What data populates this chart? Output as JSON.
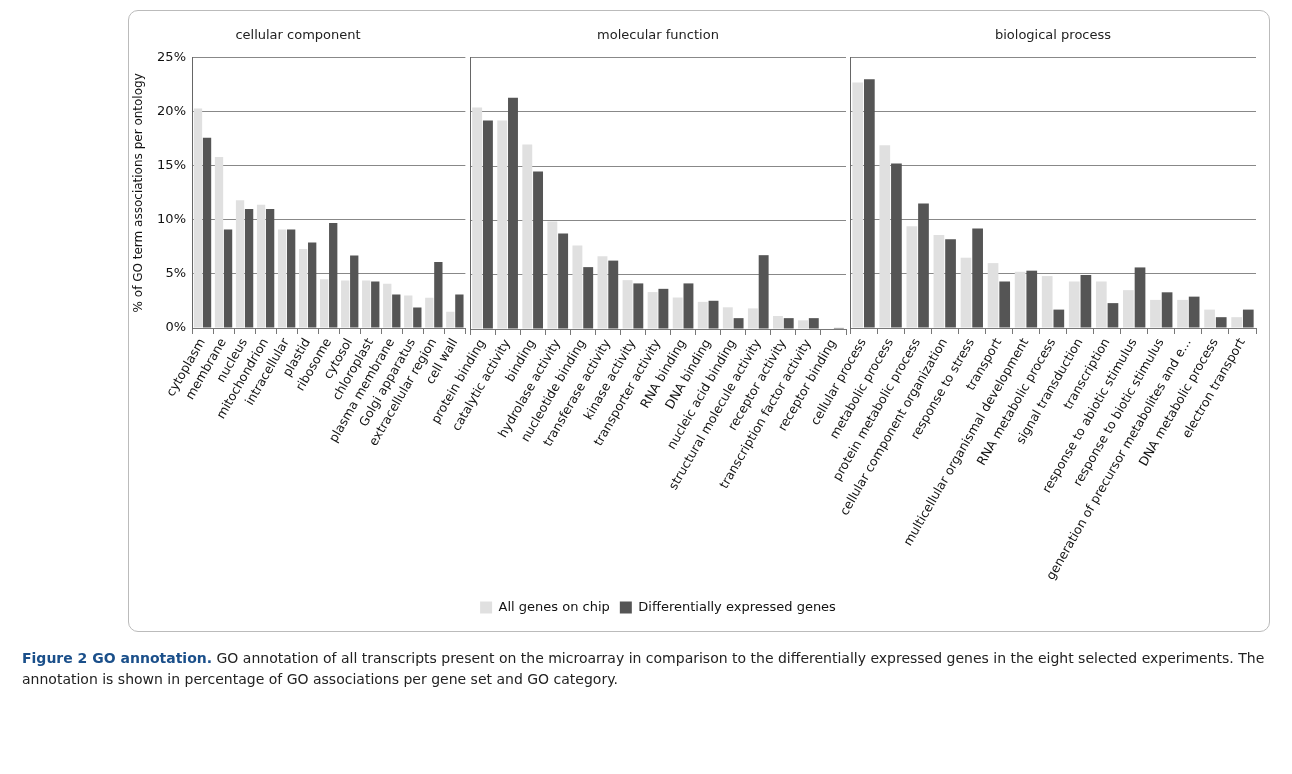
{
  "chart_data": [
    {
      "type": "bar",
      "title": "cellular component",
      "ylabel": "% of GO term associations per ontology",
      "categories": [
        "cytoplasm",
        "membrane",
        "nucleus",
        "mitochondrion",
        "intracellular",
        "plastid",
        "ribosome",
        "cytosol",
        "chloroplast",
        "plasma membrane",
        "Golgi apparatus",
        "extracellular region",
        "cell wall"
      ],
      "series": [
        {
          "color": "#e0e0e0",
          "values": [
            20.3,
            15.8,
            11.8,
            11.4,
            9.1,
            7.3,
            4.5,
            4.4,
            4.4,
            4.1,
            3.0,
            2.8,
            1.5
          ]
        },
        {
          "color": "#555555",
          "values": [
            17.6,
            9.1,
            11.0,
            11.0,
            9.1,
            7.9,
            9.7,
            6.7,
            4.3,
            3.1,
            1.9,
            6.1,
            3.1
          ]
        }
      ],
      "ylim": [
        0,
        25
      ],
      "yticks": [
        {
          "value": 0,
          "label": "0%"
        },
        {
          "value": 5,
          "label": "5%"
        },
        {
          "value": 10,
          "label": "10%"
        },
        {
          "value": 15,
          "label": "15%"
        },
        {
          "value": 20,
          "label": "20%"
        },
        {
          "value": 25,
          "label": "25%"
        }
      ],
      "grid": "y",
      "legend": false,
      "annotations": [
        "Figure 2 GO annotation.",
        "GO annotation of all transcripts present on the microarray in comparison to the differentially expressed genes in the eight selected experiments. The annotation is shown in percentage of GO associations per gene set and GO category."
      ]
    },
    {
      "type": "bar",
      "title": "molecular function",
      "categories": [
        "protein binding",
        "catalytic activity",
        "binding",
        "hydrolase activity",
        "nucleotide binding",
        "transferase activity",
        "kinase activity",
        "transporter activity",
        "RNA binding",
        "DNA binding",
        "nucleic acid binding",
        "structural molecule activity",
        "receptor activity",
        "transcription factor activity",
        "receptor binding"
      ],
      "series": [
        {
          "name": "All genes on chip",
          "color": "#e0e0e0",
          "values": [
            20.4,
            19.2,
            17.0,
            9.9,
            7.7,
            6.7,
            4.5,
            3.4,
            2.9,
            2.5,
            2.0,
            1.9,
            1.2,
            0.8,
            null
          ]
        },
        {
          "name": "Differentially expressed genes",
          "color": "#555555",
          "values": [
            19.2,
            21.3,
            14.5,
            8.8,
            5.7,
            6.3,
            4.2,
            3.7,
            4.2,
            2.6,
            1.0,
            6.8,
            1.0,
            1.0,
            0.1
          ]
        }
      ],
      "ylim": [
        0,
        25
      ],
      "yticks": [
        {
          "value": 0,
          "label": null
        },
        {
          "value": 5,
          "label": null
        },
        {
          "value": 10,
          "label": null
        },
        {
          "value": 15,
          "label": null
        },
        {
          "value": 20,
          "label": null
        },
        {
          "value": 25,
          "label": null
        }
      ],
      "tick_labels": "x",
      "grid": "y",
      "legend": "bottom"
    },
    {
      "type": "bar",
      "title": "biological process",
      "categories": [
        "cellular process",
        "metabolic process",
        "protein metabolic process",
        "cellular component organization",
        "response to stress",
        "transport",
        "multicellular organismal development",
        "RNA metabolic process",
        "signal transduction",
        "transcription",
        "response to abiotic stimulus",
        "response to biotic stimulus",
        "generation of precursor metabolites and e...",
        "DNA metabolic process",
        "electron transport"
      ],
      "series": [
        {
          "color": "#e0e0e0",
          "values": [
            22.7,
            16.9,
            9.4,
            8.6,
            6.5,
            6.0,
            5.2,
            4.8,
            4.3,
            4.3,
            3.5,
            2.6,
            2.6,
            1.7,
            1.0
          ]
        },
        {
          "color": "#555555",
          "values": [
            23.0,
            15.2,
            11.5,
            8.2,
            9.2,
            4.3,
            5.3,
            1.7,
            4.9,
            2.3,
            5.6,
            3.3,
            2.9,
            1.0,
            1.7
          ]
        }
      ],
      "ylim": [
        0,
        25
      ],
      "yticks": [
        {
          "value": 0,
          "label": null
        },
        {
          "value": 5,
          "label": null
        },
        {
          "value": 10,
          "label": null
        },
        {
          "value": 15,
          "label": null
        },
        {
          "value": 20,
          "label": null
        },
        {
          "value": 25,
          "label": null
        }
      ],
      "tick_labels": "x",
      "grid": "y",
      "legend": false
    }
  ]
}
